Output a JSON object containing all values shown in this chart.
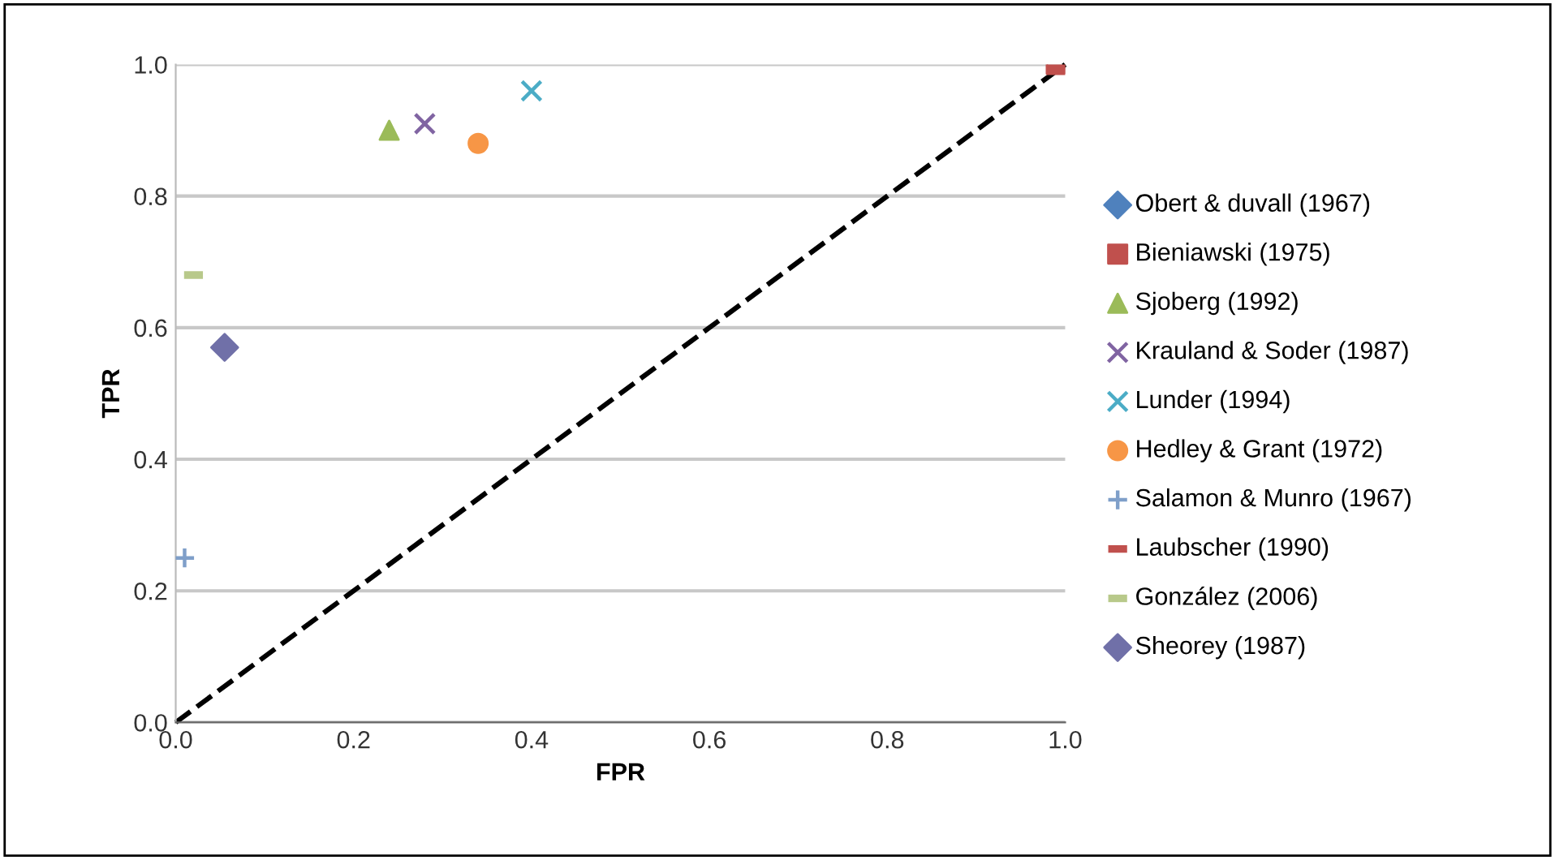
{
  "chart_data": {
    "type": "scatter",
    "xlabel": "FPR",
    "ylabel": "TPR",
    "xlim": [
      0,
      1
    ],
    "ylim": [
      0,
      1
    ],
    "xticks": [
      {
        "value": 0,
        "label": "0.0"
      },
      {
        "value": 0.2,
        "label": "0.2"
      },
      {
        "value": 0.4,
        "label": "0.4"
      },
      {
        "value": 0.6,
        "label": "0.6"
      },
      {
        "value": 0.8,
        "label": "0.8"
      },
      {
        "value": 1,
        "label": "1.0"
      }
    ],
    "yticks": [
      {
        "value": 0,
        "label": "0.0"
      },
      {
        "value": 0.2,
        "label": "0.2"
      },
      {
        "value": 0.4,
        "label": "0.4"
      },
      {
        "value": 0.6,
        "label": "0.6"
      },
      {
        "value": 0.8,
        "label": "0.8"
      },
      {
        "value": 1,
        "label": "1.0"
      }
    ],
    "grid": "y",
    "legend": "right",
    "series": [
      {
        "name": "Obert & duvall (1967)",
        "color": "#4f81bd",
        "marker": "diamond",
        "x": [
          null
        ],
        "values": [
          null
        ]
      },
      {
        "name": "Bieniawski (1975)",
        "color": "#c0504d",
        "marker": "square",
        "x": [
          0.99
        ],
        "values": [
          1.0
        ]
      },
      {
        "name": "Sjoberg (1992)",
        "color": "#9bbb59",
        "marker": "triangle",
        "x": [
          0.24
        ],
        "values": [
          0.9
        ]
      },
      {
        "name": "Krauland & Soder (1987)",
        "color": "#8064a2",
        "marker": "cross",
        "x": [
          0.28
        ],
        "values": [
          0.91
        ]
      },
      {
        "name": "Lunder (1994)",
        "color": "#4bacc6",
        "marker": "cross",
        "x": [
          0.4
        ],
        "values": [
          0.96
        ]
      },
      {
        "name": "Hedley & Grant (1972)",
        "color": "#f79646",
        "marker": "circle",
        "x": [
          0.34
        ],
        "values": [
          0.88
        ]
      },
      {
        "name": "Salamon & Munro (1967)",
        "color": "#7f9fc9",
        "marker": "plus",
        "x": [
          0.01
        ],
        "values": [
          0.25
        ]
      },
      {
        "name": "Laubscher (1990)",
        "color": "#c0504d",
        "x": [
          null
        ],
        "values": [
          null
        ]
      },
      {
        "name": "González (2006)",
        "color": "#b8c98a",
        "x": [
          0.02
        ],
        "values": [
          0.68
        ]
      },
      {
        "name": "Sheorey (1987)",
        "color": "#7070a8",
        "marker": "diamond",
        "x": [
          0.055
        ],
        "values": [
          0.57
        ]
      },
      {
        "type": "line",
        "color": "#000000",
        "line_style": "dashed",
        "marker": "none",
        "x": [
          0,
          1
        ],
        "values": [
          0,
          1
        ]
      }
    ]
  }
}
